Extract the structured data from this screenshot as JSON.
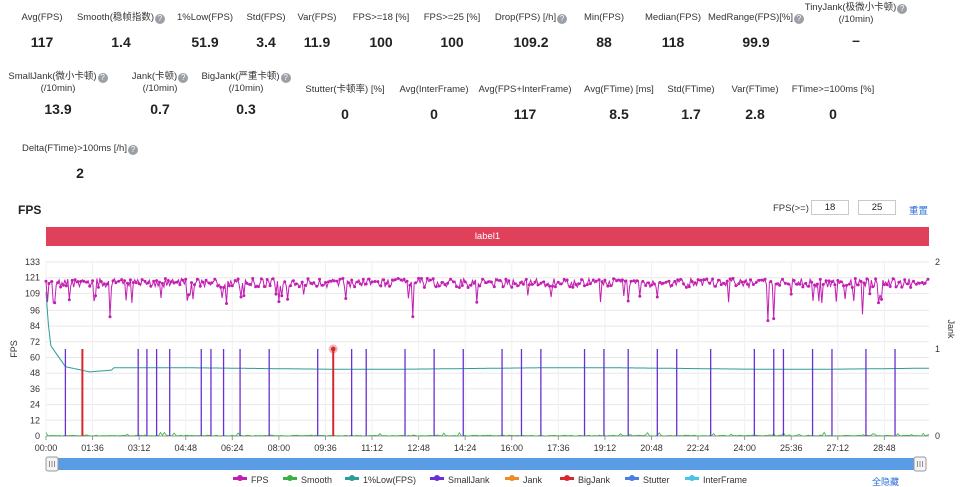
{
  "stats_row1": [
    {
      "label": "Avg(FPS)",
      "value": "117",
      "help": false
    },
    {
      "label": "Smooth(稳帧指数)",
      "value": "1.4",
      "help": true
    },
    {
      "label": "1%Low(FPS)",
      "value": "51.9",
      "help": false
    },
    {
      "label": "Std(FPS)",
      "value": "3.4",
      "help": false
    },
    {
      "label": "Var(FPS)",
      "value": "11.9",
      "help": false
    },
    {
      "label": "FPS>=18 [%]",
      "value": "100",
      "help": false
    },
    {
      "label": "FPS>=25 [%]",
      "value": "100",
      "help": false
    },
    {
      "label": "Drop(FPS) [/h]",
      "value": "109.2",
      "help": true
    },
    {
      "label": "Min(FPS)",
      "value": "88",
      "help": false
    },
    {
      "label": "Median(FPS)",
      "value": "118",
      "help": false
    },
    {
      "label": "MedRange(FPS)[%]",
      "value": "99.9",
      "help": true
    },
    {
      "label": "TinyJank(极微小卡顿)",
      "label2": "(/10min)",
      "value": "–",
      "help": true
    }
  ],
  "stats_row2": [
    {
      "label": "SmallJank(微小卡顿)",
      "label2": "(/10min)",
      "value": "13.9",
      "help": true
    },
    {
      "label": "Jank(卡顿)",
      "label2": "(/10min)",
      "value": "0.7",
      "help": true
    },
    {
      "label": "BigJank(严重卡顿)",
      "label2": "(/10min)",
      "value": "0.3",
      "help": true
    },
    {
      "label": "Stutter(卡顿率) [%]",
      "value": "0",
      "help": false
    },
    {
      "label": "Avg(InterFrame)",
      "value": "0",
      "help": false
    },
    {
      "label": "Avg(FPS+InterFrame)",
      "value": "117",
      "help": false
    },
    {
      "label": "Avg(FTime) [ms]",
      "value": "8.5",
      "help": false
    },
    {
      "label": "Std(FTime)",
      "value": "1.7",
      "help": false
    },
    {
      "label": "Var(FTime)",
      "value": "2.8",
      "help": false
    },
    {
      "label": "FTime>=100ms [%]",
      "value": "0",
      "help": false
    }
  ],
  "stats_row3": [
    {
      "label": "Delta(FTime)>100ms [/h]",
      "value": "2",
      "help": true
    }
  ],
  "fps_section": {
    "title": "FPS",
    "threshold_label": "FPS(>=)",
    "threshold_1": "18",
    "threshold_2": "25",
    "reset_label": "重置"
  },
  "label_band": "label1",
  "legend": {
    "items": [
      {
        "name": "FPS",
        "color": "#c21fb1"
      },
      {
        "name": "Smooth",
        "color": "#3cb043"
      },
      {
        "name": "1%Low(FPS)",
        "color": "#2a9d9a"
      },
      {
        "name": "SmallJank",
        "color": "#6a2fd6"
      },
      {
        "name": "Jank",
        "color": "#f08a24"
      },
      {
        "name": "BigJank",
        "color": "#d9262f"
      },
      {
        "name": "Stutter",
        "color": "#4a7fe0"
      },
      {
        "name": "InterFrame",
        "color": "#4cc3e6"
      }
    ],
    "hide_all_label": "全隐藏"
  },
  "chart_data": {
    "type": "line",
    "xlabel": "",
    "ylabel": "FPS",
    "y2label": "Jank",
    "ylim": [
      0,
      133
    ],
    "y2lim": [
      0,
      2
    ],
    "y_ticks": [
      0,
      12,
      24,
      36,
      48,
      60,
      72,
      84,
      96,
      109,
      121,
      133
    ],
    "y2_ticks": [
      0,
      1,
      2
    ],
    "x_ticks": [
      "00:00",
      "01:36",
      "03:12",
      "04:48",
      "06:24",
      "08:00",
      "09:36",
      "11:12",
      "12:48",
      "14:24",
      "16:00",
      "17:36",
      "19:12",
      "20:48",
      "22:24",
      "24:00",
      "25:36",
      "27:12",
      "28:48"
    ],
    "x_range_seconds": [
      0,
      1820
    ],
    "grid": true,
    "fps_summary": {
      "avg": 117,
      "min": 88,
      "median": 118
    },
    "series": [
      {
        "name": "FPS",
        "color": "#c21fb1",
        "typical_range": [
          112,
          121
        ],
        "dips_to": [
          88,
          109
        ]
      },
      {
        "name": "1%Low(FPS)",
        "color": "#2a9d9a",
        "start_value": 110,
        "settles_at": 51.9
      },
      {
        "name": "Smooth",
        "color": "#3cb043",
        "range": [
          0,
          3
        ]
      },
      {
        "name": "SmallJank",
        "color": "#6a2fd6",
        "events_seconds": [
          40,
          190,
          208,
          228,
          255,
          320,
          340,
          366,
          400,
          460,
          560,
          630,
          660,
          740,
          800,
          860,
          940,
          980,
          1020,
          1110,
          1150,
          1200,
          1260,
          1300,
          1370,
          1460,
          1500,
          1520,
          1580,
          1620,
          1690,
          1750
        ]
      },
      {
        "name": "Jank",
        "color": "#f08a24",
        "events_seconds": []
      },
      {
        "name": "BigJank",
        "color": "#d9262f",
        "events_seconds": [
          75,
          592
        ]
      }
    ]
  }
}
